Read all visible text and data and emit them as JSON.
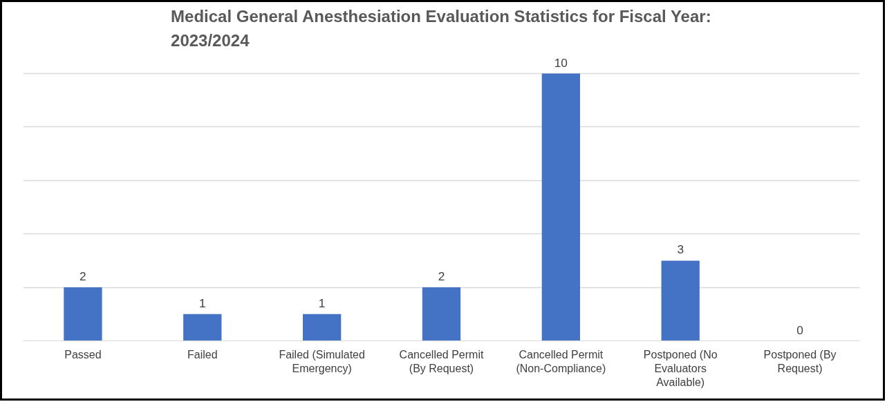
{
  "chart_data": {
    "type": "bar",
    "title": "Medical General Anesthesiation Evaluation Statistics for Fiscal Year: 2023/2024",
    "categories": [
      "Passed",
      "Failed",
      "Failed (Simulated Emergency)",
      "Cancelled Permit (By Request)",
      "Cancelled Permit (Non-Compliance)",
      "Postponed (No Evaluators Available)",
      "Postponed (By Request)"
    ],
    "values": [
      2,
      1,
      1,
      2,
      10,
      3,
      0
    ],
    "color": "#4472c4",
    "grid": "y",
    "tick_labels": "x",
    "data_labels": true
  }
}
